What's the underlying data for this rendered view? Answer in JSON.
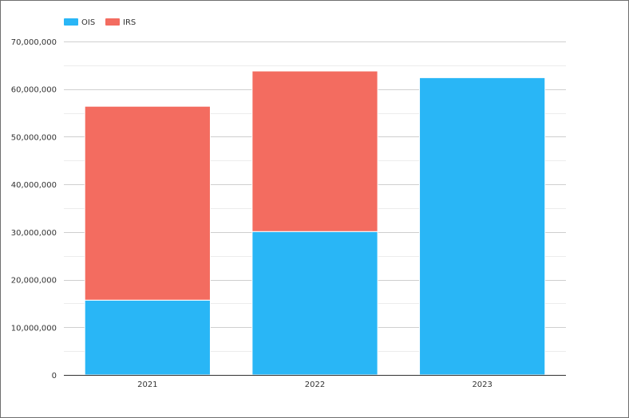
{
  "chart_data": {
    "type": "bar",
    "stacked": true,
    "categories": [
      "2021",
      "2022",
      "2023"
    ],
    "series": [
      {
        "name": "OIS",
        "color": "#29b6f6",
        "values": [
          15700000,
          30100000,
          62400000
        ]
      },
      {
        "name": "IRS",
        "color": "#f36c60",
        "values": [
          40700000,
          33700000,
          0
        ]
      }
    ],
    "ylim": [
      0,
      70000000
    ],
    "yticks": [
      0,
      10000000,
      20000000,
      30000000,
      40000000,
      50000000,
      60000000,
      70000000
    ],
    "ytick_labels": [
      "0",
      "10,000,000",
      "20,000,000",
      "30,000,000",
      "40,000,000",
      "50,000,000",
      "60,000,000",
      "70,000,000"
    ],
    "grid": true,
    "legend": "top-left"
  }
}
